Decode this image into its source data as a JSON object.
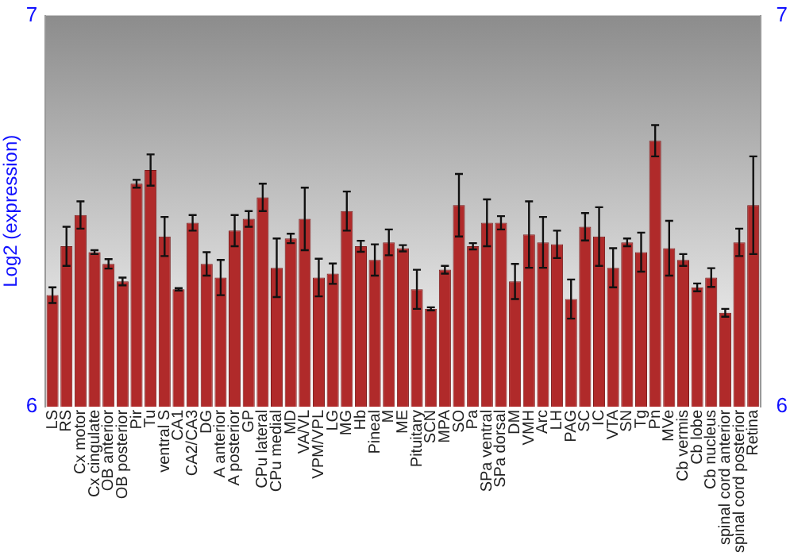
{
  "chart_data": {
    "type": "bar",
    "ylabel": "Log2 (expression)",
    "categories": [
      "LS",
      "RS",
      "Cx motor",
      "Cx cingulate",
      "OB anterior",
      "OB posterior",
      "Pir",
      "Tu",
      "ventral S",
      "CA1",
      "CA2/CA3",
      "DG",
      "A anterior",
      "A posterior",
      "GP",
      "CPu lateral",
      "CPu medial",
      "MD",
      "VA/VL",
      "VPM/VPL",
      "LG",
      "MG",
      "Hb",
      "Pineal",
      "M",
      "ME",
      "Pituitary",
      "SCN",
      "MPA",
      "SO",
      "Pa",
      "SPa ventral",
      "SPa dorsal",
      "DM",
      "VMH",
      "Arc",
      "LH",
      "PAG",
      "SC",
      "IC",
      "VTA",
      "SN",
      "Tg",
      "Pn",
      "MVe",
      "Cb vermis",
      "Cb lobe",
      "Cb nucleus",
      "spinal cord anterior",
      "spinal cord posterior",
      "Retina"
    ],
    "values": [
      6.285,
      6.41,
      6.49,
      6.395,
      6.365,
      6.32,
      6.57,
      6.605,
      6.435,
      6.3,
      6.47,
      6.365,
      6.33,
      6.45,
      6.48,
      6.535,
      6.355,
      6.43,
      6.48,
      6.33,
      6.34,
      6.5,
      6.41,
      6.375,
      6.42,
      6.405,
      6.3,
      6.25,
      6.35,
      6.515,
      6.41,
      6.47,
      6.47,
      6.32,
      6.44,
      6.42,
      6.415,
      6.275,
      6.46,
      6.435,
      6.355,
      6.42,
      6.395,
      6.68,
      6.405,
      6.375,
      6.305,
      6.33,
      6.24,
      6.42,
      6.515
    ],
    "errors": [
      0.02,
      0.05,
      0.035,
      0.005,
      0.012,
      0.01,
      0.01,
      0.04,
      0.05,
      0.003,
      0.02,
      0.03,
      0.045,
      0.04,
      0.02,
      0.035,
      0.075,
      0.012,
      0.08,
      0.048,
      0.026,
      0.05,
      0.014,
      0.04,
      0.033,
      0.008,
      0.05,
      0.004,
      0.01,
      0.08,
      0.008,
      0.06,
      0.017,
      0.045,
      0.085,
      0.065,
      0.035,
      0.05,
      0.035,
      0.075,
      0.05,
      0.01,
      0.05,
      0.04,
      0.07,
      0.015,
      0.01,
      0.024,
      0.01,
      0.035,
      0.125
    ],
    "color": "#b02a2a",
    "ylim": [
      6,
      7
    ],
    "yticks": [
      6,
      7
    ],
    "y2lim": [
      6,
      7
    ],
    "y2ticks": [
      6,
      7
    ],
    "grid": false,
    "legend": false
  }
}
